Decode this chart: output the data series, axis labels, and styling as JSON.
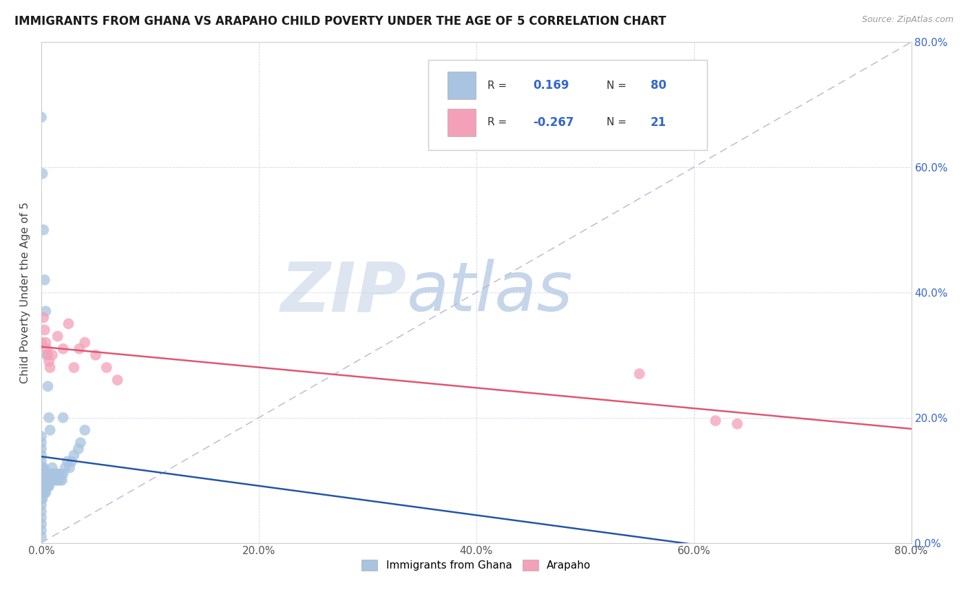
{
  "title": "IMMIGRANTS FROM GHANA VS ARAPAHO CHILD POVERTY UNDER THE AGE OF 5 CORRELATION CHART",
  "source": "Source: ZipAtlas.com",
  "ylabel": "Child Poverty Under the Age of 5",
  "xlim": [
    0,
    0.8
  ],
  "ylim": [
    0,
    0.8
  ],
  "xticks": [
    0.0,
    0.2,
    0.4,
    0.6,
    0.8
  ],
  "yticks": [
    0.0,
    0.2,
    0.4,
    0.6,
    0.8
  ],
  "ghana_R": 0.169,
  "ghana_N": 80,
  "arapaho_R": -0.267,
  "arapaho_N": 21,
  "ghana_color": "#a8c4e0",
  "arapaho_color": "#f4a0b8",
  "ghana_line_color": "#2255aa",
  "arapaho_line_color": "#e05570",
  "background_color": "#ffffff",
  "legend_label_ghana": "Immigrants from Ghana",
  "legend_label_arapaho": "Arapaho",
  "ghana_x": [
    0.0,
    0.0,
    0.0,
    0.0,
    0.0,
    0.0,
    0.0,
    0.0,
    0.0,
    0.0,
    0.0,
    0.0,
    0.0,
    0.0,
    0.0,
    0.0,
    0.0,
    0.001,
    0.001,
    0.001,
    0.001,
    0.001,
    0.001,
    0.002,
    0.002,
    0.002,
    0.002,
    0.002,
    0.003,
    0.003,
    0.003,
    0.003,
    0.004,
    0.004,
    0.004,
    0.004,
    0.005,
    0.005,
    0.005,
    0.006,
    0.006,
    0.006,
    0.007,
    0.007,
    0.007,
    0.008,
    0.008,
    0.009,
    0.009,
    0.01,
    0.01,
    0.01,
    0.011,
    0.012,
    0.013,
    0.014,
    0.015,
    0.016,
    0.017,
    0.018,
    0.019,
    0.02,
    0.022,
    0.024,
    0.026,
    0.028,
    0.03,
    0.034,
    0.036,
    0.04,
    0.0,
    0.001,
    0.002,
    0.003,
    0.004,
    0.005,
    0.006,
    0.007,
    0.008,
    0.02
  ],
  "ghana_y": [
    0.1,
    0.09,
    0.08,
    0.07,
    0.06,
    0.05,
    0.04,
    0.03,
    0.02,
    0.01,
    0.12,
    0.11,
    0.13,
    0.14,
    0.15,
    0.16,
    0.17,
    0.1,
    0.11,
    0.12,
    0.09,
    0.08,
    0.07,
    0.1,
    0.11,
    0.12,
    0.09,
    0.08,
    0.1,
    0.11,
    0.09,
    0.08,
    0.1,
    0.11,
    0.09,
    0.08,
    0.1,
    0.11,
    0.09,
    0.1,
    0.11,
    0.09,
    0.1,
    0.11,
    0.09,
    0.1,
    0.11,
    0.1,
    0.11,
    0.1,
    0.11,
    0.12,
    0.1,
    0.11,
    0.1,
    0.11,
    0.1,
    0.11,
    0.1,
    0.11,
    0.1,
    0.11,
    0.12,
    0.13,
    0.12,
    0.13,
    0.14,
    0.15,
    0.16,
    0.18,
    0.68,
    0.59,
    0.5,
    0.42,
    0.37,
    0.3,
    0.25,
    0.2,
    0.18,
    0.2
  ],
  "arapaho_x": [
    0.0,
    0.002,
    0.003,
    0.004,
    0.005,
    0.006,
    0.007,
    0.008,
    0.01,
    0.015,
    0.02,
    0.025,
    0.03,
    0.035,
    0.04,
    0.05,
    0.06,
    0.07,
    0.55,
    0.62,
    0.64
  ],
  "arapaho_y": [
    0.32,
    0.36,
    0.34,
    0.32,
    0.31,
    0.3,
    0.29,
    0.28,
    0.3,
    0.33,
    0.31,
    0.35,
    0.28,
    0.31,
    0.32,
    0.3,
    0.28,
    0.26,
    0.27,
    0.195,
    0.19
  ]
}
